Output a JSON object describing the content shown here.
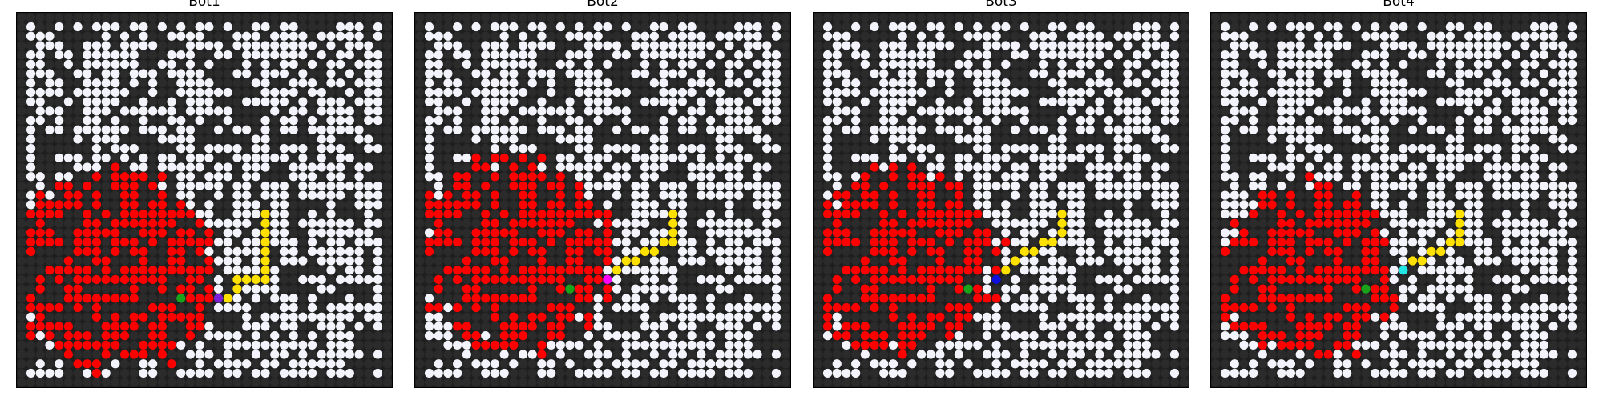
{
  "colors": {
    "background": "#1f1f1f",
    "empty_cell": "#2b2b2b",
    "open_cell": "#f3f3fb",
    "fire": "#ff0000",
    "path": "#ffe100",
    "button": "#1aa31a",
    "bot1": "#7a1fd6",
    "bot2": "#ff00ff",
    "bot3": "#1010dd",
    "bot4": "#22e6e6"
  },
  "panels": [
    {
      "title": "Bot1",
      "bot_color_key": "bot1",
      "fire_center": [
        27,
        10
      ],
      "fire_radius": 10.8,
      "fire_top": 17,
      "bot_cell": [
        30,
        21
      ],
      "button_cell": [
        30,
        17
      ],
      "path": [
        [
          30,
          22
        ],
        [
          29,
          23
        ],
        [
          28,
          23
        ],
        [
          28,
          24
        ],
        [
          28,
          25
        ],
        [
          28,
          26
        ],
        [
          27,
          26
        ],
        [
          26,
          26
        ],
        [
          25,
          26
        ],
        [
          24,
          26
        ],
        [
          23,
          26
        ],
        [
          22,
          26
        ],
        [
          21,
          26
        ]
      ]
    },
    {
      "title": "Bot2",
      "bot_color_key": "bot2",
      "fire_center": [
        25,
        10
      ],
      "fire_radius": 10.2,
      "fire_top": 16,
      "bot_cell": [
        28,
        20
      ],
      "button_cell": [
        29,
        16
      ],
      "path": [
        [
          27,
          21
        ],
        [
          26,
          22
        ],
        [
          26,
          23
        ],
        [
          25,
          24
        ],
        [
          25,
          25
        ],
        [
          24,
          26
        ],
        [
          24,
          27
        ],
        [
          23,
          27
        ],
        [
          22,
          27
        ],
        [
          21,
          27
        ]
      ]
    },
    {
      "title": "Bot3",
      "bot_color_key": "bot3",
      "fire_center": [
        26,
        9
      ],
      "fire_radius": 10,
      "fire_top": 17,
      "bot_cell": [
        28,
        19
      ],
      "button_cell": [
        29,
        16
      ],
      "path": [
        [
          27,
          20
        ],
        [
          26,
          21
        ],
        [
          25,
          22
        ],
        [
          25,
          23
        ],
        [
          24,
          24
        ],
        [
          24,
          25
        ],
        [
          23,
          26
        ],
        [
          22,
          26
        ],
        [
          21,
          26
        ]
      ]
    },
    {
      "title": "Bot4",
      "bot_color_key": "bot4",
      "fire_center": [
        27,
        10
      ],
      "fire_radius": 9.4,
      "fire_top": 18,
      "bot_cell": [
        27,
        20
      ],
      "button_cell": [
        29,
        16
      ],
      "path": [
        [
          26,
          21
        ],
        [
          26,
          22
        ],
        [
          25,
          23
        ],
        [
          25,
          24
        ],
        [
          24,
          25
        ],
        [
          24,
          26
        ],
        [
          23,
          26
        ],
        [
          22,
          26
        ],
        [
          21,
          26
        ]
      ]
    }
  ]
}
